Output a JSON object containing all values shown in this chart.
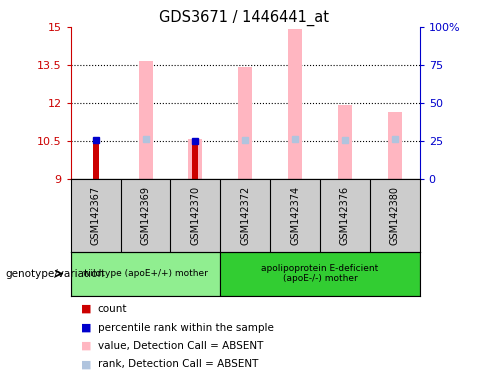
{
  "title": "GDS3671 / 1446441_at",
  "samples": [
    "GSM142367",
    "GSM142369",
    "GSM142370",
    "GSM142372",
    "GSM142374",
    "GSM142376",
    "GSM142380"
  ],
  "group1_label": "wildtype (apoE+/+) mother",
  "group2_label": "apolipoprotein E-deficient\n(apoE-/-) mother",
  "ylim_left": [
    9,
    15
  ],
  "ylim_right": [
    0,
    100
  ],
  "yticks_left": [
    9,
    10.5,
    12,
    13.5,
    15
  ],
  "yticks_right": [
    0,
    25,
    50,
    75,
    100
  ],
  "ytick_labels_right": [
    "0",
    "25",
    "50",
    "75",
    "100%"
  ],
  "red_bars": {
    "GSM142367": [
      9.0,
      10.5
    ],
    "GSM142369": [
      9.0,
      9.0
    ],
    "GSM142370": [
      9.0,
      10.4
    ],
    "GSM142372": [
      9.0,
      9.0
    ],
    "GSM142374": [
      9.0,
      9.0
    ],
    "GSM142376": [
      9.0,
      9.0
    ],
    "GSM142380": [
      9.0,
      9.0
    ]
  },
  "pink_bars": {
    "GSM142367": [
      9.0,
      9.0
    ],
    "GSM142369": [
      9.0,
      13.65
    ],
    "GSM142370": [
      9.0,
      10.55
    ],
    "GSM142372": [
      9.0,
      13.4
    ],
    "GSM142374": [
      9.0,
      14.9
    ],
    "GSM142376": [
      9.0,
      11.9
    ],
    "GSM142380": [
      9.0,
      11.65
    ]
  },
  "blue_dots_y": {
    "GSM142367": 10.52,
    "GSM142369": null,
    "GSM142370": 10.5,
    "GSM142372": null,
    "GSM142374": null,
    "GSM142376": null,
    "GSM142380": null
  },
  "lightblue_dots_y": {
    "GSM142367": null,
    "GSM142369": 10.56,
    "GSM142370": null,
    "GSM142372": 10.53,
    "GSM142374": 10.56,
    "GSM142376": 10.52,
    "GSM142380": 10.55
  },
  "left_axis_color": "#cc0000",
  "right_axis_color": "#0000cc",
  "group1_bg": "#90ee90",
  "group2_bg": "#32cd32",
  "sample_area_bg": "#cccccc",
  "legend_items": [
    {
      "color": "#cc0000",
      "label": "count"
    },
    {
      "color": "#0000cc",
      "label": "percentile rank within the sample"
    },
    {
      "color": "#ffb6c1",
      "label": "value, Detection Call = ABSENT"
    },
    {
      "color": "#b0c4de",
      "label": "rank, Detection Call = ABSENT"
    }
  ]
}
